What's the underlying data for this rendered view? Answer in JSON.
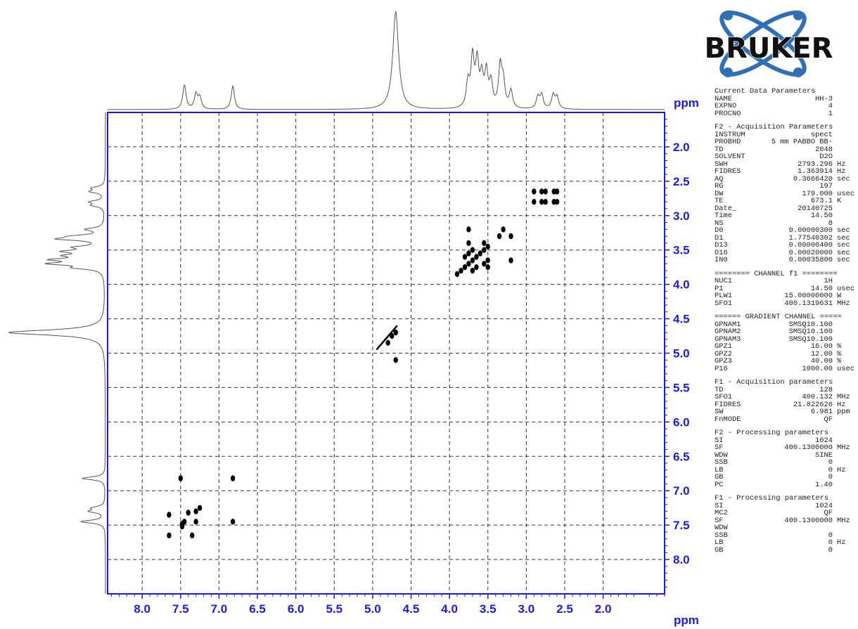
{
  "brand": {
    "name": "BRUKER"
  },
  "colors": {
    "frame": "#1a1aee",
    "axis_text": "#1a1aee",
    "contour": "#000000",
    "spectrum": "#555555",
    "grid": "#333333",
    "logo_blue": "#2f6fb8"
  },
  "chart_data": {
    "type": "2D NMR COSY contour plot",
    "x_unit_label": "ppm",
    "y_unit_label": "ppm",
    "x_range": [
      8.45,
      1.2
    ],
    "y_range": [
      1.5,
      8.5
    ],
    "x_ticks": [
      "8.0",
      "7.5",
      "7.0",
      "6.5",
      "6.0",
      "5.5",
      "5.0",
      "4.5",
      "4.0",
      "3.5",
      "3.0",
      "2.5",
      "2.0"
    ],
    "y_ticks": [
      "2.0",
      "2.5",
      "3.0",
      "3.5",
      "4.0",
      "4.5",
      "5.0",
      "5.5",
      "6.0",
      "6.5",
      "7.0",
      "7.5",
      "8.0"
    ],
    "grid": "dashed",
    "projection_1d_peaks": [
      {
        "ppm": 7.45,
        "height": 0.25
      },
      {
        "ppm": 7.3,
        "height": 0.15
      },
      {
        "ppm": 7.25,
        "height": 0.12
      },
      {
        "ppm": 6.82,
        "height": 0.24
      },
      {
        "ppm": 4.7,
        "height": 1.0
      },
      {
        "ppm": 3.76,
        "height": 0.25
      },
      {
        "ppm": 3.7,
        "height": 0.5
      },
      {
        "ppm": 3.64,
        "height": 0.45
      },
      {
        "ppm": 3.58,
        "height": 0.3
      },
      {
        "ppm": 3.52,
        "height": 0.35
      },
      {
        "ppm": 3.46,
        "height": 0.25
      },
      {
        "ppm": 3.34,
        "height": 0.42
      },
      {
        "ppm": 3.3,
        "height": 0.25
      },
      {
        "ppm": 3.2,
        "height": 0.18
      },
      {
        "ppm": 2.85,
        "height": 0.12
      },
      {
        "ppm": 2.8,
        "height": 0.14
      },
      {
        "ppm": 2.65,
        "height": 0.14
      },
      {
        "ppm": 2.6,
        "height": 0.12
      }
    ],
    "cross_peaks": [
      {
        "x": 2.8,
        "y": 2.65
      },
      {
        "x": 2.75,
        "y": 2.65
      },
      {
        "x": 2.64,
        "y": 2.65
      },
      {
        "x": 2.6,
        "y": 2.65
      },
      {
        "x": 2.8,
        "y": 2.8
      },
      {
        "x": 2.75,
        "y": 2.8
      },
      {
        "x": 2.64,
        "y": 2.8
      },
      {
        "x": 2.6,
        "y": 2.8
      },
      {
        "x": 2.9,
        "y": 2.65
      },
      {
        "x": 2.9,
        "y": 2.8
      },
      {
        "x": 3.3,
        "y": 3.2
      },
      {
        "x": 3.2,
        "y": 3.3
      },
      {
        "x": 3.35,
        "y": 3.3
      },
      {
        "x": 3.2,
        "y": 3.65
      },
      {
        "x": 3.75,
        "y": 3.2
      },
      {
        "x": 3.9,
        "y": 3.85
      },
      {
        "x": 3.85,
        "y": 3.8
      },
      {
        "x": 3.8,
        "y": 3.75
      },
      {
        "x": 3.75,
        "y": 3.7
      },
      {
        "x": 3.7,
        "y": 3.65
      },
      {
        "x": 3.65,
        "y": 3.6
      },
      {
        "x": 3.6,
        "y": 3.55
      },
      {
        "x": 3.55,
        "y": 3.5
      },
      {
        "x": 3.5,
        "y": 3.45
      },
      {
        "x": 3.7,
        "y": 3.8
      },
      {
        "x": 3.65,
        "y": 3.75
      },
      {
        "x": 3.55,
        "y": 3.7
      },
      {
        "x": 3.8,
        "y": 3.6
      },
      {
        "x": 3.75,
        "y": 3.55
      },
      {
        "x": 3.5,
        "y": 3.65
      },
      {
        "x": 3.5,
        "y": 3.75
      },
      {
        "x": 3.7,
        "y": 3.5
      },
      {
        "x": 3.55,
        "y": 3.4
      },
      {
        "x": 3.75,
        "y": 3.4
      },
      {
        "x": 4.8,
        "y": 4.85
      },
      {
        "x": 4.75,
        "y": 4.75
      },
      {
        "x": 4.7,
        "y": 4.7
      },
      {
        "x": 4.7,
        "y": 5.1
      },
      {
        "x": 7.5,
        "y": 6.82
      },
      {
        "x": 6.82,
        "y": 6.82
      },
      {
        "x": 7.3,
        "y": 7.3
      },
      {
        "x": 7.25,
        "y": 7.25
      },
      {
        "x": 7.3,
        "y": 7.45
      },
      {
        "x": 7.45,
        "y": 7.45
      },
      {
        "x": 7.48,
        "y": 7.48
      },
      {
        "x": 6.82,
        "y": 7.45
      },
      {
        "x": 7.4,
        "y": 7.32
      },
      {
        "x": 7.48,
        "y": 7.52
      },
      {
        "x": 7.65,
        "y": 7.35
      },
      {
        "x": 7.65,
        "y": 7.65
      },
      {
        "x": 7.35,
        "y": 7.65
      }
    ]
  },
  "parameters": [
    {
      "header": "Current Data Parameters",
      "rows": [
        [
          "NAME",
          "HH-3",
          ""
        ],
        [
          "EXPNO",
          "4",
          ""
        ],
        [
          "PROCNO",
          "1",
          ""
        ]
      ]
    },
    {
      "header": "F2 - Acquisition Parameters",
      "rows": [
        [
          "INSTRUM",
          "spect",
          ""
        ],
        [
          "PROBHD",
          "5 mm PABBO BB-",
          ""
        ],
        [
          "TD",
          "2048",
          ""
        ],
        [
          "SOLVENT",
          "D2O",
          ""
        ],
        [
          "SWH",
          "2793.296",
          "Hz"
        ],
        [
          "FIDRES",
          "1.363914",
          "Hz"
        ],
        [
          "AQ",
          "0.3666420",
          "sec"
        ],
        [
          "RG",
          "197",
          ""
        ],
        [
          "DW",
          "179.000",
          "usec"
        ],
        [
          "TE",
          "673.1",
          "K"
        ],
        [
          "Date_",
          "20140725",
          ""
        ],
        [
          "Time",
          "14.50",
          ""
        ],
        [
          "NS",
          "8",
          ""
        ],
        [
          "D0",
          "0.00000300",
          "sec"
        ],
        [
          "D1",
          "1.77540302",
          "sec"
        ],
        [
          "D13",
          "0.00000400",
          "sec"
        ],
        [
          "D16",
          "0.00020000",
          "sec"
        ],
        [
          "IN0",
          "0.00035800",
          "sec"
        ]
      ]
    },
    {
      "header": "======== CHANNEL f1 ========",
      "rows": [
        [
          "NUC1",
          "1H",
          ""
        ],
        [
          "P1",
          "14.50",
          "usec"
        ],
        [
          "PLW1",
          "15.00000000",
          "W"
        ],
        [
          "SFO1",
          "400.1319631",
          "MHz"
        ]
      ]
    },
    {
      "header": "====== GRADIENT CHANNEL =====",
      "rows": [
        [
          "GPNAM1",
          "SMSQ10.100",
          ""
        ],
        [
          "GPNAM2",
          "SMSQ10.100",
          ""
        ],
        [
          "GPNAM3",
          "SMSQ10.100",
          ""
        ],
        [
          "GPZ1",
          "16.00",
          "%"
        ],
        [
          "GPZ2",
          "12.00",
          "%"
        ],
        [
          "GPZ3",
          "40.00",
          "%"
        ],
        [
          "P16",
          "1000.00",
          "usec"
        ]
      ]
    },
    {
      "header": "F1 - Acquisition parameters",
      "rows": [
        [
          "TD",
          "128",
          ""
        ],
        [
          "SFO1",
          "400.132",
          "MHz"
        ],
        [
          "FIDRES",
          "21.822626",
          "Hz"
        ],
        [
          "SW",
          "6.981",
          "ppm"
        ],
        [
          "FnMODE",
          "QF",
          ""
        ]
      ]
    },
    {
      "header": "F2 - Processing parameters",
      "rows": [
        [
          "SI",
          "1024",
          ""
        ],
        [
          "SF",
          "400.1300000",
          "MHz"
        ],
        [
          "WDW",
          "SINE",
          ""
        ],
        [
          "SSB",
          "0",
          ""
        ],
        [
          "LB",
          "0",
          "Hz"
        ],
        [
          "GB",
          "0",
          ""
        ],
        [
          "PC",
          "1.40",
          ""
        ]
      ]
    },
    {
      "header": "F1 - Processing parameters",
      "rows": [
        [
          "SI",
          "1024",
          ""
        ],
        [
          "MC2",
          "QF",
          ""
        ],
        [
          "SF",
          "400.1300000",
          "MHz"
        ],
        [
          "WDW",
          "",
          ""
        ],
        [
          "SSB",
          "0",
          ""
        ],
        [
          "LB",
          "0",
          "Hz"
        ],
        [
          "GB",
          "0",
          ""
        ]
      ]
    }
  ]
}
